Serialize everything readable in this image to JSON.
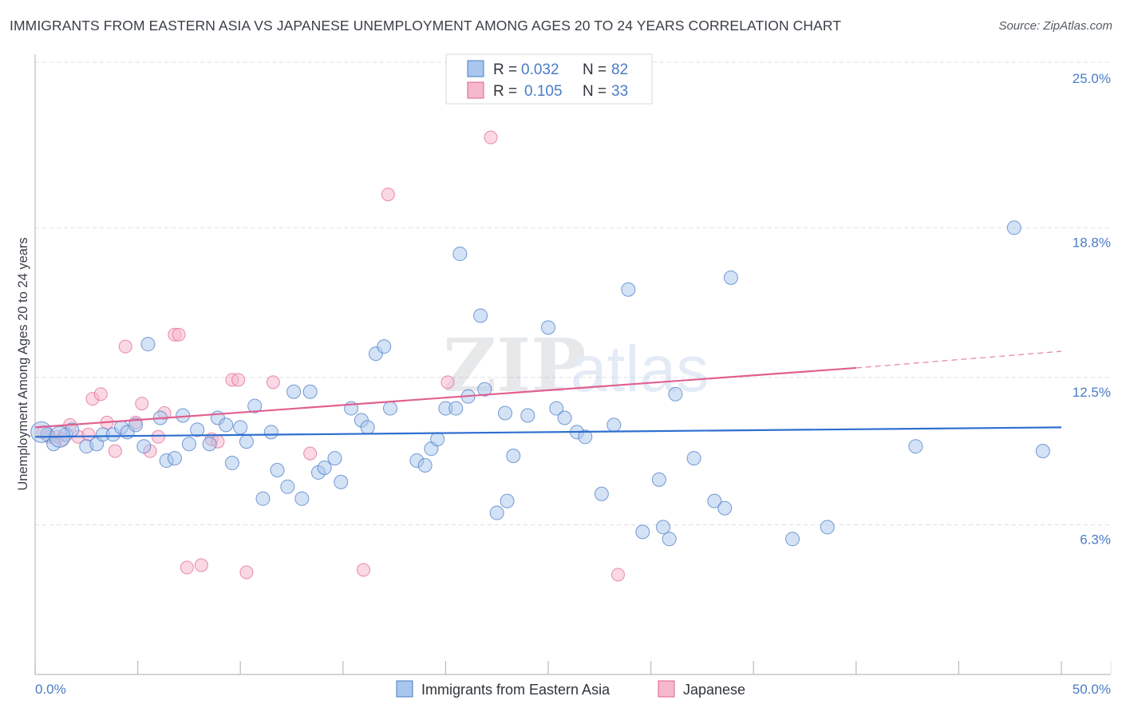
{
  "title": "IMMIGRANTS FROM EASTERN ASIA VS JAPANESE UNEMPLOYMENT AMONG AGES 20 TO 24 YEARS CORRELATION CHART",
  "source": "Source: ZipAtlas.com",
  "watermark": {
    "zip": "ZIP",
    "atlas": "atlas"
  },
  "legend": {
    "rows": [
      {
        "r_label": "R =",
        "r_value": "0.032",
        "n_label": "N =",
        "n_value": "82"
      },
      {
        "r_label": "R =",
        "r_value": "0.105",
        "n_label": "N =",
        "n_value": "33"
      }
    ]
  },
  "bottom_legend": [
    "Immigrants from Eastern Asia",
    "Japanese"
  ],
  "chart_data": {
    "type": "scatter",
    "xlabel": "",
    "ylabel": "Unemployment Among Ages 20 to 24 years",
    "xlim": [
      0,
      50
    ],
    "ylim": [
      0,
      26.2
    ],
    "x_tick_labels": [
      "0.0%",
      "50.0%"
    ],
    "y_ticks": [
      6.3,
      12.5,
      18.8,
      25.0
    ],
    "y_tick_labels": [
      "6.3%",
      "12.5%",
      "18.8%",
      "25.0%"
    ],
    "grid": true,
    "legend_position": "top-center",
    "colors": {
      "blue": "#4a7cc6",
      "blue_fill": "#a9c6ee",
      "pink": "#e0608f",
      "pink_fill": "#f5b8cd",
      "text_dark": "#2f343a"
    },
    "series": [
      {
        "name": "Immigrants from Eastern Asia",
        "color": "#4a7cc6",
        "trend": {
          "x": [
            0.0,
            50.0
          ],
          "y": [
            10.0,
            10.4
          ]
        },
        "points": [
          [
            0.6,
            10.1
          ],
          [
            0.9,
            9.7
          ],
          [
            1.5,
            10.1
          ],
          [
            1.8,
            10.3
          ],
          [
            2.5,
            9.6
          ],
          [
            3.0,
            9.7
          ],
          [
            3.3,
            10.1
          ],
          [
            3.8,
            10.1
          ],
          [
            4.2,
            10.4
          ],
          [
            4.5,
            10.2
          ],
          [
            4.9,
            10.5
          ],
          [
            5.3,
            9.6
          ],
          [
            5.5,
            13.9
          ],
          [
            6.1,
            10.8
          ],
          [
            6.4,
            9.0
          ],
          [
            6.8,
            9.1
          ],
          [
            7.2,
            10.9
          ],
          [
            7.5,
            9.7
          ],
          [
            7.9,
            10.3
          ],
          [
            8.5,
            9.7
          ],
          [
            8.9,
            10.8
          ],
          [
            9.3,
            10.5
          ],
          [
            9.6,
            8.9
          ],
          [
            10.0,
            10.4
          ],
          [
            10.3,
            9.8
          ],
          [
            10.7,
            11.3
          ],
          [
            11.1,
            7.4
          ],
          [
            11.5,
            10.2
          ],
          [
            11.8,
            8.6
          ],
          [
            12.3,
            7.9
          ],
          [
            12.6,
            11.9
          ],
          [
            13.0,
            7.4
          ],
          [
            13.4,
            11.9
          ],
          [
            13.8,
            8.5
          ],
          [
            14.1,
            8.7
          ],
          [
            14.6,
            9.1
          ],
          [
            14.9,
            8.1
          ],
          [
            15.4,
            11.2
          ],
          [
            15.9,
            10.7
          ],
          [
            16.2,
            10.4
          ],
          [
            16.6,
            13.5
          ],
          [
            17.0,
            13.8
          ],
          [
            17.3,
            11.2
          ],
          [
            18.6,
            9.0
          ],
          [
            19.0,
            8.8
          ],
          [
            19.3,
            9.5
          ],
          [
            19.6,
            9.9
          ],
          [
            20.0,
            11.2
          ],
          [
            20.5,
            11.2
          ],
          [
            20.7,
            17.7
          ],
          [
            21.1,
            11.7
          ],
          [
            21.7,
            15.1
          ],
          [
            21.9,
            12.0
          ],
          [
            22.5,
            6.8
          ],
          [
            22.9,
            11.0
          ],
          [
            23.0,
            7.3
          ],
          [
            23.3,
            9.2
          ],
          [
            24.0,
            10.9
          ],
          [
            25.0,
            14.6
          ],
          [
            25.4,
            11.2
          ],
          [
            25.8,
            10.8
          ],
          [
            26.4,
            10.2
          ],
          [
            26.8,
            10.0
          ],
          [
            27.6,
            7.6
          ],
          [
            28.2,
            10.5
          ],
          [
            28.9,
            16.2
          ],
          [
            29.6,
            6.0
          ],
          [
            30.4,
            8.2
          ],
          [
            30.6,
            6.2
          ],
          [
            30.9,
            5.7
          ],
          [
            31.2,
            11.8
          ],
          [
            32.1,
            9.1
          ],
          [
            33.1,
            7.3
          ],
          [
            33.6,
            7.0
          ],
          [
            33.9,
            16.7
          ],
          [
            36.9,
            5.7
          ],
          [
            38.6,
            6.2
          ],
          [
            42.9,
            9.6
          ],
          [
            47.7,
            18.8
          ],
          [
            49.1,
            9.4
          ],
          [
            0.3,
            10.2
          ],
          [
            1.2,
            10.0
          ]
        ]
      },
      {
        "name": "Japanese",
        "color": "#e0608f",
        "trend": {
          "x": [
            0.0,
            40.0
          ],
          "y": [
            10.4,
            12.9
          ]
        },
        "trend_dashed": {
          "x": [
            40.0,
            50.0
          ],
          "y": [
            12.9,
            13.6
          ]
        },
        "points": [
          [
            0.4,
            10.2
          ],
          [
            0.7,
            10.0
          ],
          [
            1.1,
            10.0
          ],
          [
            1.7,
            10.5
          ],
          [
            2.1,
            10.0
          ],
          [
            2.8,
            11.6
          ],
          [
            3.2,
            11.8
          ],
          [
            3.5,
            10.6
          ],
          [
            3.9,
            9.4
          ],
          [
            4.4,
            13.8
          ],
          [
            4.9,
            10.6
          ],
          [
            5.2,
            11.4
          ],
          [
            5.6,
            9.4
          ],
          [
            6.0,
            10.0
          ],
          [
            6.3,
            11.0
          ],
          [
            6.8,
            14.3
          ],
          [
            7.0,
            14.3
          ],
          [
            7.4,
            4.5
          ],
          [
            8.1,
            4.6
          ],
          [
            8.6,
            9.9
          ],
          [
            8.9,
            9.8
          ],
          [
            9.6,
            12.4
          ],
          [
            9.9,
            12.4
          ],
          [
            10.3,
            4.3
          ],
          [
            11.6,
            12.3
          ],
          [
            13.4,
            9.3
          ],
          [
            16.0,
            4.4
          ],
          [
            17.2,
            20.2
          ],
          [
            20.1,
            12.3
          ],
          [
            22.2,
            22.6
          ],
          [
            28.4,
            4.2
          ],
          [
            1.3,
            9.9
          ],
          [
            2.6,
            10.1
          ]
        ]
      }
    ]
  }
}
